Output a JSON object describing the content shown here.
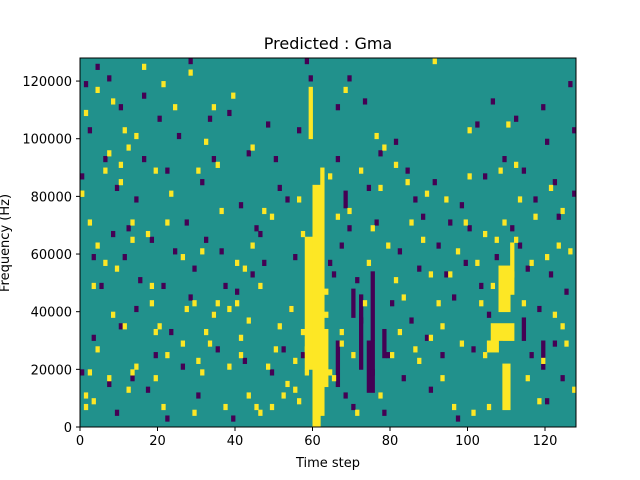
{
  "chart_data": {
    "type": "heatmap",
    "title": "Predicted : Gma",
    "xlabel": "Time step",
    "ylabel": "Frequency (Hz)",
    "xlim": [
      0,
      128
    ],
    "ylim": [
      0,
      128000
    ],
    "xticks": [
      0,
      20,
      40,
      60,
      80,
      100,
      120
    ],
    "yticks": [
      0,
      20000,
      40000,
      60000,
      80000,
      100000,
      120000
    ],
    "n_time_steps": 128,
    "n_freq_bins": 64,
    "bin_height_hz": 2000,
    "colors": {
      "background": "#21918c",
      "low": "#440154",
      "high": "#fde725"
    },
    "value_scale": [
      "low",
      "background",
      "high"
    ],
    "high_bands": [
      {
        "t0": 60,
        "t1": 62,
        "f0": 0,
        "f1": 84000
      },
      {
        "t0": 62,
        "t1": 63,
        "f0": 4000,
        "f1": 90000
      },
      {
        "t0": 58,
        "t1": 60,
        "f0": 20000,
        "f1": 66000
      },
      {
        "t0": 59,
        "t1": 60,
        "f0": 100000,
        "f1": 118000
      },
      {
        "t0": 63,
        "t1": 64,
        "f0": 14000,
        "f1": 34000
      },
      {
        "t0": 109,
        "t1": 111,
        "f0": 6000,
        "f1": 22000
      },
      {
        "t0": 108,
        "t1": 111,
        "f0": 40000,
        "f1": 56000
      },
      {
        "t0": 106,
        "t1": 112,
        "f0": 30000,
        "f1": 36000
      },
      {
        "t0": 105,
        "t1": 108,
        "f0": 26000,
        "f1": 30000
      },
      {
        "t0": 111,
        "t1": 112,
        "f0": 46000,
        "f1": 64000
      }
    ],
    "low_bands": [
      {
        "t0": 74,
        "t1": 76,
        "f0": 12000,
        "f1": 30000
      },
      {
        "t0": 75,
        "t1": 76,
        "f0": 30000,
        "f1": 54000
      },
      {
        "t0": 72,
        "t1": 73,
        "f0": 20000,
        "f1": 46000
      },
      {
        "t0": 70,
        "t1": 71,
        "f0": 38000,
        "f1": 48000
      },
      {
        "t0": 68,
        "t1": 69,
        "f0": 76000,
        "f1": 82000
      },
      {
        "t0": 66,
        "t1": 67,
        "f0": 14000,
        "f1": 30000
      },
      {
        "t0": 78,
        "t1": 79,
        "f0": 24000,
        "f1": 34000
      },
      {
        "t0": 114,
        "t1": 115,
        "f0": 30000,
        "f1": 38000
      },
      {
        "t0": 119,
        "t1": 120,
        "f0": 20000,
        "f1": 30000
      }
    ],
    "high_cells": [
      [
        0,
        40
      ],
      [
        0,
        40
      ],
      [
        1,
        3
      ],
      [
        1,
        54
      ],
      [
        1,
        5
      ],
      [
        2,
        9
      ],
      [
        2,
        35
      ],
      [
        3,
        24
      ],
      [
        3,
        4
      ],
      [
        4,
        58
      ],
      [
        4,
        13
      ],
      [
        4,
        31
      ],
      [
        6,
        28
      ],
      [
        6,
        44
      ],
      [
        7,
        47
      ],
      [
        7,
        8
      ],
      [
        8,
        56
      ],
      [
        8,
        19
      ],
      [
        9,
        27
      ],
      [
        10,
        42
      ],
      [
        10,
        45
      ],
      [
        11,
        51
      ],
      [
        11,
        17
      ],
      [
        12,
        6
      ],
      [
        12,
        48
      ],
      [
        13,
        9
      ],
      [
        13,
        35
      ],
      [
        13,
        32
      ],
      [
        14,
        10
      ],
      [
        14,
        50
      ],
      [
        16,
        62
      ],
      [
        17,
        33
      ],
      [
        18,
        21
      ],
      [
        18,
        24
      ],
      [
        19,
        8
      ],
      [
        19,
        44
      ],
      [
        19,
        16
      ],
      [
        20,
        17
      ],
      [
        21,
        3
      ],
      [
        21,
        59
      ],
      [
        22,
        12
      ],
      [
        22,
        35
      ],
      [
        23,
        40
      ],
      [
        24,
        55
      ],
      [
        26,
        14
      ],
      [
        26,
        29
      ],
      [
        27,
        20
      ],
      [
        28,
        61
      ],
      [
        29,
        2
      ],
      [
        29,
        21
      ],
      [
        30,
        11
      ],
      [
        30,
        44
      ],
      [
        31,
        9
      ],
      [
        31,
        30
      ],
      [
        32,
        16
      ],
      [
        32,
        49
      ],
      [
        33,
        14
      ],
      [
        34,
        19
      ],
      [
        34,
        55
      ],
      [
        35,
        21
      ],
      [
        35,
        45
      ],
      [
        36,
        37
      ],
      [
        37,
        3
      ],
      [
        38,
        10
      ],
      [
        38,
        20
      ],
      [
        39,
        57
      ],
      [
        40,
        21
      ],
      [
        40,
        28
      ],
      [
        41,
        12
      ],
      [
        41,
        15
      ],
      [
        42,
        27
      ],
      [
        43,
        5
      ],
      [
        43,
        18
      ],
      [
        44,
        31
      ],
      [
        44,
        48
      ],
      [
        45,
        3
      ],
      [
        46,
        2
      ],
      [
        46,
        24
      ],
      [
        47,
        37
      ],
      [
        48,
        10
      ],
      [
        49,
        36
      ],
      [
        49,
        3
      ],
      [
        50,
        13
      ],
      [
        51,
        17
      ],
      [
        52,
        5
      ],
      [
        53,
        7
      ],
      [
        54,
        20
      ],
      [
        55,
        6
      ],
      [
        55,
        11
      ],
      [
        56,
        4
      ],
      [
        56,
        39
      ],
      [
        57,
        16
      ],
      [
        57,
        33
      ],
      [
        58,
        9
      ],
      [
        58,
        13
      ],
      [
        63,
        23
      ],
      [
        63,
        19
      ],
      [
        64,
        9
      ],
      [
        64,
        43
      ],
      [
        65,
        8
      ],
      [
        66,
        36
      ],
      [
        67,
        14
      ],
      [
        67,
        16
      ],
      [
        68,
        58
      ],
      [
        69,
        37
      ],
      [
        70,
        12
      ],
      [
        71,
        2
      ],
      [
        72,
        44
      ],
      [
        73,
        21
      ],
      [
        74,
        28
      ],
      [
        75,
        34
      ],
      [
        76,
        50
      ],
      [
        77,
        5
      ],
      [
        77,
        41
      ],
      [
        78,
        48
      ],
      [
        79,
        31
      ],
      [
        80,
        12
      ],
      [
        81,
        25
      ],
      [
        81,
        45
      ],
      [
        82,
        16
      ],
      [
        83,
        22
      ],
      [
        84,
        42
      ],
      [
        85,
        35
      ],
      [
        86,
        13
      ],
      [
        87,
        11
      ],
      [
        88,
        32
      ],
      [
        89,
        40
      ],
      [
        90,
        15
      ],
      [
        90,
        26
      ],
      [
        91,
        63
      ],
      [
        92,
        21
      ],
      [
        93,
        8
      ],
      [
        93,
        17
      ],
      [
        94,
        39
      ],
      [
        95,
        26
      ],
      [
        96,
        3
      ],
      [
        97,
        30
      ],
      [
        98,
        14
      ],
      [
        99,
        35
      ],
      [
        100,
        43
      ],
      [
        100,
        51
      ],
      [
        101,
        2
      ],
      [
        102,
        28
      ],
      [
        103,
        21
      ],
      [
        104,
        12
      ],
      [
        104,
        33
      ],
      [
        105,
        3
      ],
      [
        106,
        24
      ],
      [
        107,
        32
      ],
      [
        108,
        44
      ],
      [
        109,
        35
      ],
      [
        110,
        52
      ],
      [
        111,
        26
      ],
      [
        112,
        45
      ],
      [
        112,
        32
      ],
      [
        113,
        39
      ],
      [
        114,
        21
      ],
      [
        115,
        8
      ],
      [
        116,
        28
      ],
      [
        117,
        36
      ],
      [
        118,
        4
      ],
      [
        119,
        11
      ],
      [
        120,
        29
      ],
      [
        121,
        41
      ],
      [
        122,
        19
      ],
      [
        123,
        31
      ],
      [
        124,
        17
      ],
      [
        124,
        37
      ],
      [
        125,
        14
      ],
      [
        126,
        30
      ],
      [
        127,
        6
      ]
    ],
    "low_cells": [
      [
        0,
        9
      ],
      [
        0,
        43
      ],
      [
        1,
        59
      ],
      [
        2,
        51
      ],
      [
        3,
        29
      ],
      [
        3,
        15
      ],
      [
        4,
        62
      ],
      [
        5,
        24
      ],
      [
        6,
        46
      ],
      [
        7,
        7
      ],
      [
        7,
        60
      ],
      [
        8,
        33
      ],
      [
        9,
        2
      ],
      [
        9,
        41
      ],
      [
        10,
        17
      ],
      [
        10,
        55
      ],
      [
        11,
        29
      ],
      [
        12,
        34
      ],
      [
        13,
        8
      ],
      [
        14,
        20
      ],
      [
        14,
        39
      ],
      [
        15,
        25
      ],
      [
        16,
        57
      ],
      [
        16,
        46
      ],
      [
        17,
        6
      ],
      [
        18,
        32
      ],
      [
        19,
        12
      ],
      [
        20,
        53
      ],
      [
        21,
        24
      ],
      [
        22,
        1
      ],
      [
        22,
        44
      ],
      [
        23,
        16
      ],
      [
        24,
        30
      ],
      [
        25,
        50
      ],
      [
        26,
        10
      ],
      [
        27,
        35
      ],
      [
        28,
        22
      ],
      [
        28,
        63
      ],
      [
        29,
        27
      ],
      [
        30,
        5
      ],
      [
        31,
        42
      ],
      [
        32,
        32
      ],
      [
        33,
        53
      ],
      [
        34,
        19
      ],
      [
        34,
        46
      ],
      [
        35,
        13
      ],
      [
        36,
        30
      ],
      [
        37,
        24
      ],
      [
        38,
        54
      ],
      [
        39,
        1
      ],
      [
        40,
        23
      ],
      [
        41,
        38
      ],
      [
        42,
        11
      ],
      [
        43,
        47
      ],
      [
        44,
        26
      ],
      [
        45,
        34
      ],
      [
        46,
        33
      ],
      [
        47,
        28
      ],
      [
        48,
        52
      ],
      [
        49,
        9
      ],
      [
        50,
        46
      ],
      [
        51,
        41
      ],
      [
        52,
        13
      ],
      [
        53,
        39
      ],
      [
        54,
        20
      ],
      [
        55,
        29
      ],
      [
        56,
        51
      ],
      [
        57,
        12
      ],
      [
        58,
        63
      ],
      [
        59,
        60
      ],
      [
        64,
        28
      ],
      [
        65,
        26
      ],
      [
        66,
        55
      ],
      [
        66,
        46
      ],
      [
        67,
        31
      ],
      [
        68,
        5
      ],
      [
        69,
        34
      ],
      [
        69,
        60
      ],
      [
        70,
        3
      ],
      [
        71,
        25
      ],
      [
        72,
        18
      ],
      [
        73,
        56
      ],
      [
        74,
        41
      ],
      [
        75,
        9
      ],
      [
        76,
        35
      ],
      [
        77,
        47
      ],
      [
        78,
        2
      ],
      [
        79,
        12
      ],
      [
        80,
        21
      ],
      [
        81,
        49
      ],
      [
        82,
        30
      ],
      [
        83,
        8
      ],
      [
        84,
        44
      ],
      [
        85,
        18
      ],
      [
        86,
        39
      ],
      [
        87,
        27
      ],
      [
        88,
        36
      ],
      [
        89,
        15
      ],
      [
        90,
        6
      ],
      [
        91,
        42
      ],
      [
        92,
        31
      ],
      [
        93,
        12
      ],
      [
        94,
        26
      ],
      [
        95,
        35
      ],
      [
        96,
        22
      ],
      [
        97,
        1
      ],
      [
        98,
        38
      ],
      [
        99,
        28
      ],
      [
        100,
        34
      ],
      [
        101,
        13
      ],
      [
        102,
        52
      ],
      [
        103,
        24
      ],
      [
        104,
        43
      ],
      [
        105,
        19
      ],
      [
        106,
        56
      ],
      [
        107,
        29
      ],
      [
        108,
        15
      ],
      [
        109,
        46
      ],
      [
        110,
        25
      ],
      [
        111,
        34
      ],
      [
        112,
        53
      ],
      [
        113,
        31
      ],
      [
        114,
        44
      ],
      [
        115,
        27
      ],
      [
        116,
        12
      ],
      [
        117,
        39
      ],
      [
        118,
        20
      ],
      [
        119,
        55
      ],
      [
        120,
        4
      ],
      [
        120,
        49
      ],
      [
        121,
        26
      ],
      [
        122,
        42
      ],
      [
        122,
        14
      ],
      [
        123,
        36
      ],
      [
        124,
        8
      ],
      [
        125,
        23
      ],
      [
        126,
        59
      ],
      [
        127,
        40
      ],
      [
        127,
        51
      ]
    ]
  }
}
